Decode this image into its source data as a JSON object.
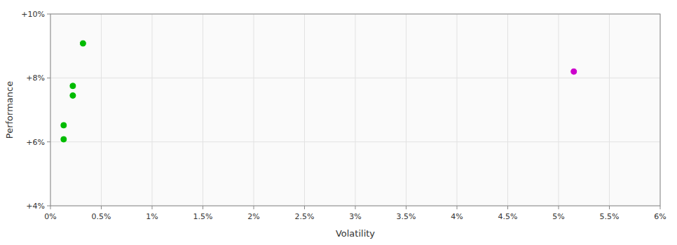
{
  "chart_data": {
    "type": "scatter",
    "xlabel": "Volatility",
    "ylabel": "Performance",
    "xlim": [
      0,
      0.06
    ],
    "ylim": [
      0.04,
      0.1
    ],
    "xticks": [
      {
        "value": 0.0,
        "label": "0%"
      },
      {
        "value": 0.005,
        "label": "0.5%"
      },
      {
        "value": 0.01,
        "label": "1%"
      },
      {
        "value": 0.015,
        "label": "1.5%"
      },
      {
        "value": 0.02,
        "label": "2%"
      },
      {
        "value": 0.025,
        "label": "2.5%"
      },
      {
        "value": 0.03,
        "label": "3%"
      },
      {
        "value": 0.035,
        "label": "3.5%"
      },
      {
        "value": 0.04,
        "label": "4%"
      },
      {
        "value": 0.045,
        "label": "4.5%"
      },
      {
        "value": 0.05,
        "label": "5%"
      },
      {
        "value": 0.055,
        "label": "5.5%"
      },
      {
        "value": 0.06,
        "label": "6%"
      }
    ],
    "yticks": [
      {
        "value": 0.04,
        "label": "+4%"
      },
      {
        "value": 0.06,
        "label": "+6%"
      },
      {
        "value": 0.08,
        "label": "+8%"
      },
      {
        "value": 0.1,
        "label": "+10%"
      }
    ],
    "grid": true,
    "series": [
      {
        "color": "#00bb00",
        "x": [
          0.0032,
          0.0022,
          0.0022,
          0.0013,
          0.0013
        ],
        "values": [
          0.0908,
          0.0775,
          0.0745,
          0.0652,
          0.0608
        ]
      },
      {
        "color": "#cc00cc",
        "x": [
          0.0515
        ],
        "values": [
          0.082
        ]
      }
    ]
  }
}
